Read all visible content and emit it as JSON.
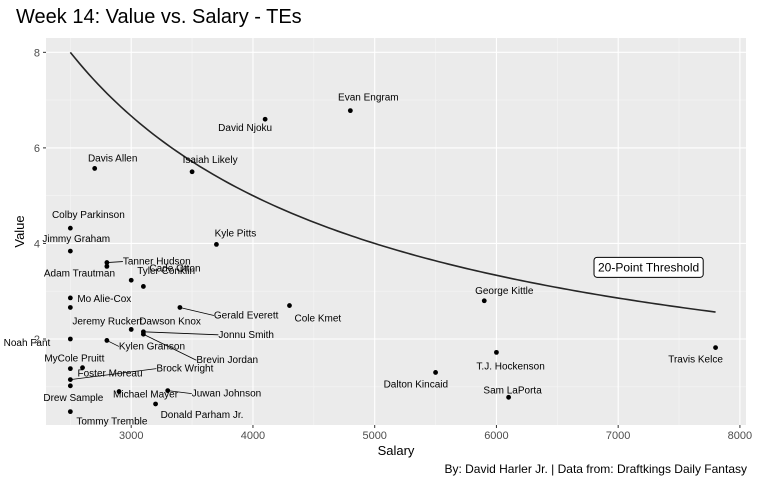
{
  "chart_data": {
    "type": "scatter",
    "title": "Week 14: Value vs. Salary - TEs",
    "caption": "By: David Harler Jr. | Data from: Draftkings Daily Fantasy",
    "xlabel": "Salary",
    "ylabel": "Value",
    "xlim": [
      2300,
      8050
    ],
    "ylim": [
      0.2,
      8.3
    ],
    "xticks": [
      3000,
      4000,
      5000,
      6000,
      7000,
      8000
    ],
    "yticks": [
      2,
      4,
      6,
      8
    ],
    "grid": true,
    "annotation": "20-Point Threshold",
    "threshold_points": 20,
    "points": [
      {
        "name": "Evan Engram",
        "x": 4800,
        "y": 6.78
      },
      {
        "name": "David Njoku",
        "x": 4100,
        "y": 6.6
      },
      {
        "name": "Davis Allen",
        "x": 2700,
        "y": 5.57
      },
      {
        "name": "Isaiah Likely",
        "x": 3500,
        "y": 5.5
      },
      {
        "name": "Colby Parkinson",
        "x": 2500,
        "y": 4.32
      },
      {
        "name": "Jimmy Graham",
        "x": 2500,
        "y": 3.84
      },
      {
        "name": "Kyle Pitts",
        "x": 3700,
        "y": 3.98
      },
      {
        "name": "Tanner Hudson",
        "x": 2800,
        "y": 3.6
      },
      {
        "name": "Adam Trautman",
        "x": 2800,
        "y": 3.52
      },
      {
        "name": "Tyler Conklin",
        "x": 3000,
        "y": 3.23
      },
      {
        "name": "Mo Alie-Cox",
        "x": 2500,
        "y": 2.86
      },
      {
        "name": "Cade Otton",
        "x": 3100,
        "y": 3.1
      },
      {
        "name": "Jeremy Ruckert",
        "x": 2500,
        "y": 2.66
      },
      {
        "name": "Gerald Everett",
        "x": 3400,
        "y": 2.66
      },
      {
        "name": "Cole Kmet",
        "x": 4300,
        "y": 2.7
      },
      {
        "name": "George Kittle",
        "x": 5900,
        "y": 2.8
      },
      {
        "name": "Dawson Knox",
        "x": 3000,
        "y": 2.2
      },
      {
        "name": "Jonnu Smith",
        "x": 3100,
        "y": 2.15
      },
      {
        "name": "Brevin Jordan",
        "x": 3100,
        "y": 2.1
      },
      {
        "name": "Noah Fant",
        "x": 2500,
        "y": 2.0
      },
      {
        "name": "Kylen Granson",
        "x": 2800,
        "y": 1.97
      },
      {
        "name": "MyCole Pruitt",
        "x": 2500,
        "y": 1.38
      },
      {
        "name": "Foster Moreau",
        "x": 2600,
        "y": 1.4
      },
      {
        "name": "Brock Wright",
        "x": 2500,
        "y": 1.15
      },
      {
        "name": "Drew Sample",
        "x": 2500,
        "y": 1.02
      },
      {
        "name": "Michael Mayer",
        "x": 2900,
        "y": 0.9
      },
      {
        "name": "Juwan Johnson",
        "x": 3300,
        "y": 0.92
      },
      {
        "name": "Donald Parham Jr.",
        "x": 3200,
        "y": 0.64
      },
      {
        "name": "Tommy Tremble",
        "x": 2500,
        "y": 0.48
      },
      {
        "name": "T.J. Hockenson",
        "x": 6000,
        "y": 1.72
      },
      {
        "name": "Dalton Kincaid",
        "x": 5500,
        "y": 1.3
      },
      {
        "name": "Sam LaPorta",
        "x": 6100,
        "y": 0.78
      },
      {
        "name": "Travis Kelce",
        "x": 7800,
        "y": 1.82
      }
    ]
  }
}
